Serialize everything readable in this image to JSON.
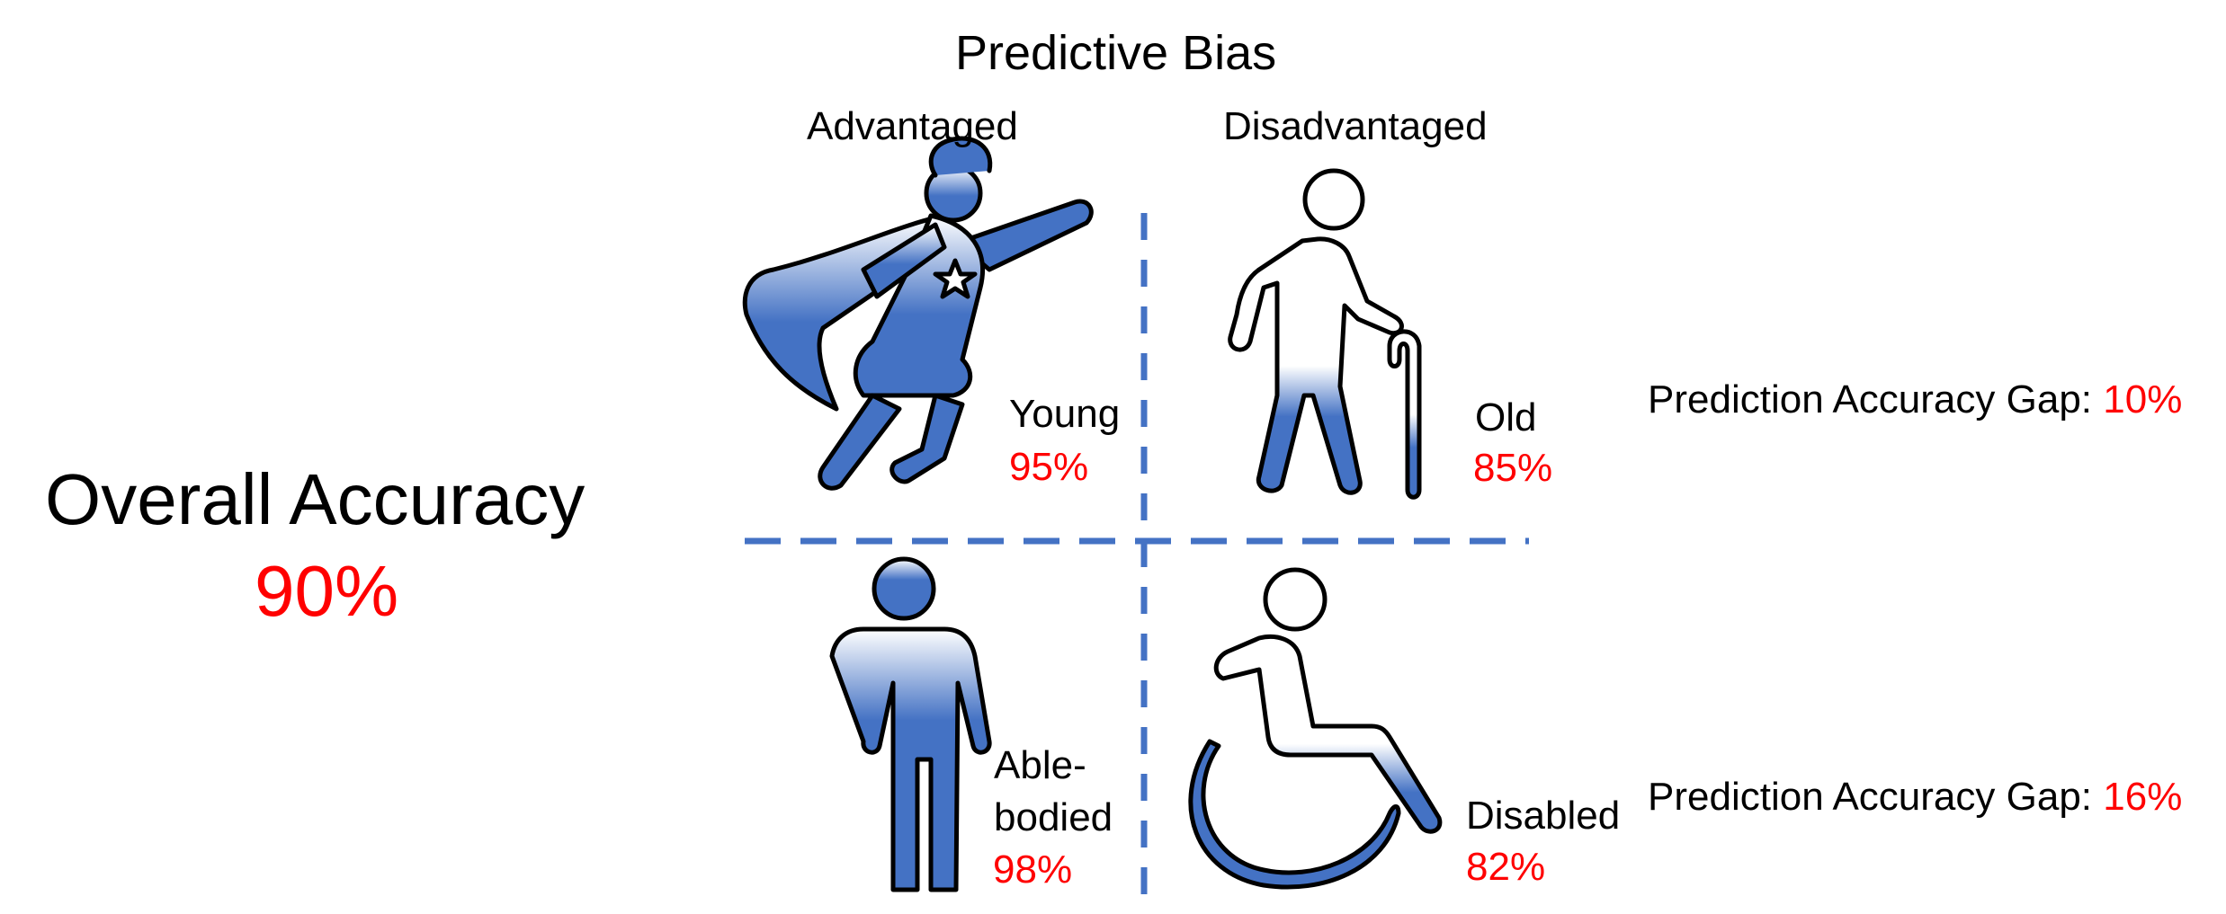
{
  "title": "Predictive Bias",
  "columns": {
    "advantaged": "Advantaged",
    "disadvantaged": "Disadvantaged"
  },
  "overall": {
    "label": "Overall Accuracy",
    "value": "90%"
  },
  "groups": {
    "young": {
      "label": "Young",
      "value": "95%",
      "icon": "superhero-icon"
    },
    "old": {
      "label": "Old",
      "value": "85%",
      "icon": "elderly-person-with-cane-icon"
    },
    "able_bodied": {
      "label_line1": "Able-",
      "label_line2": "bodied",
      "value": "98%",
      "icon": "standing-person-icon"
    },
    "disabled": {
      "label": "Disabled",
      "value": "82%",
      "icon": "wheelchair-icon"
    }
  },
  "gaps": [
    {
      "label": "Prediction Accuracy Gap: ",
      "value": "10%"
    },
    {
      "label": "Prediction Accuracy Gap: ",
      "value": "16%"
    }
  ],
  "colors": {
    "accent_blue": "#4472c4",
    "highlight_red": "#ff0000",
    "gradient_light": "#ffffff"
  }
}
